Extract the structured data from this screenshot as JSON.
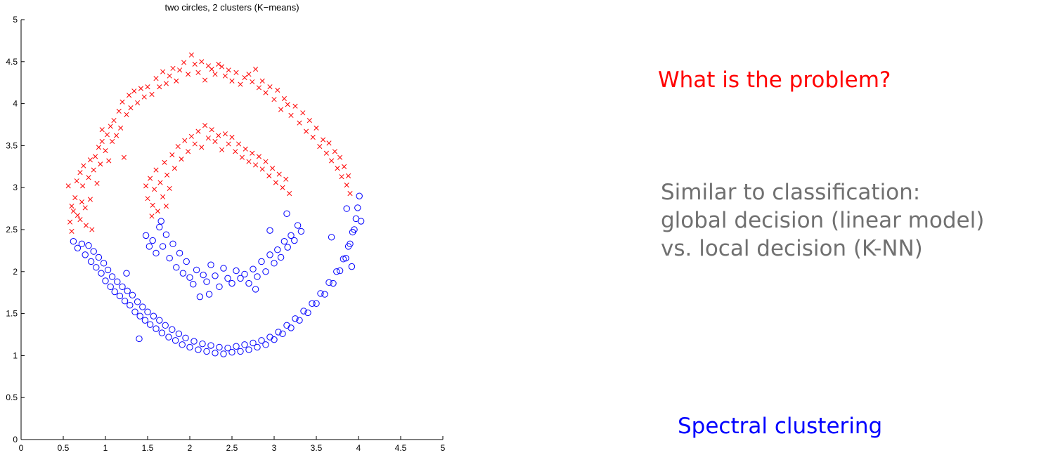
{
  "chart_data": {
    "type": "scatter",
    "title": "two circles, 2 clusters (K−means)",
    "xlabel": "",
    "ylabel": "",
    "xlim": [
      0,
      5
    ],
    "ylim": [
      0,
      5
    ],
    "xticks": [
      "0",
      "0.5",
      "1",
      "1.5",
      "2",
      "2.5",
      "3",
      "3.5",
      "4",
      "4.5",
      "5"
    ],
    "yticks": [
      "0",
      "0.5",
      "1",
      "1.5",
      "2",
      "2.5",
      "3",
      "3.5",
      "4",
      "4.5",
      "5"
    ],
    "grid": false,
    "series": [
      {
        "marker": "x",
        "color": "#ff0000",
        "points": [
          [
            0.56,
            3.02
          ],
          [
            0.58,
            2.59
          ],
          [
            0.6,
            2.78
          ],
          [
            0.6,
            2.48
          ],
          [
            0.62,
            2.72
          ],
          [
            0.64,
            2.88
          ],
          [
            0.66,
            3.08
          ],
          [
            0.67,
            2.67
          ],
          [
            0.7,
            3.18
          ],
          [
            0.7,
            2.62
          ],
          [
            0.72,
            2.83
          ],
          [
            0.73,
            3.02
          ],
          [
            0.74,
            3.26
          ],
          [
            0.76,
            2.76
          ],
          [
            0.77,
            2.55
          ],
          [
            0.8,
            3.12
          ],
          [
            0.82,
            2.86
          ],
          [
            0.82,
            3.33
          ],
          [
            0.84,
            2.5
          ],
          [
            0.86,
            3.21
          ],
          [
            0.88,
            3.37
          ],
          [
            0.9,
            3.05
          ],
          [
            0.92,
            3.48
          ],
          [
            0.94,
            3.28
          ],
          [
            0.96,
            3.55
          ],
          [
            0.96,
            3.69
          ],
          [
            1.0,
            3.44
          ],
          [
            1.02,
            3.63
          ],
          [
            1.04,
            3.32
          ],
          [
            1.06,
            3.73
          ],
          [
            1.08,
            3.55
          ],
          [
            1.1,
            3.8
          ],
          [
            1.13,
            3.62
          ],
          [
            1.16,
            3.91
          ],
          [
            1.18,
            3.71
          ],
          [
            1.2,
            4.02
          ],
          [
            1.22,
            3.36
          ],
          [
            1.25,
            3.87
          ],
          [
            1.28,
            4.1
          ],
          [
            1.3,
            3.95
          ],
          [
            1.34,
            4.15
          ],
          [
            1.38,
            4.01
          ],
          [
            1.42,
            4.18
          ],
          [
            1.46,
            4.08
          ],
          [
            1.5,
            4.2
          ],
          [
            1.55,
            4.11
          ],
          [
            1.6,
            4.3
          ],
          [
            1.64,
            4.2
          ],
          [
            1.68,
            4.38
          ],
          [
            1.72,
            4.24
          ],
          [
            1.76,
            4.33
          ],
          [
            1.8,
            4.42
          ],
          [
            1.84,
            4.27
          ],
          [
            1.88,
            4.4
          ],
          [
            1.93,
            4.49
          ],
          [
            1.98,
            4.35
          ],
          [
            2.02,
            4.58
          ],
          [
            2.06,
            4.47
          ],
          [
            2.1,
            4.37
          ],
          [
            2.14,
            4.5
          ],
          [
            2.18,
            4.28
          ],
          [
            2.22,
            4.45
          ],
          [
            2.26,
            4.41
          ],
          [
            2.3,
            4.35
          ],
          [
            2.34,
            4.47
          ],
          [
            2.38,
            4.44
          ],
          [
            2.42,
            4.33
          ],
          [
            2.46,
            4.4
          ],
          [
            2.5,
            4.27
          ],
          [
            2.55,
            4.37
          ],
          [
            2.6,
            4.23
          ],
          [
            2.65,
            4.31
          ],
          [
            2.7,
            4.35
          ],
          [
            2.74,
            4.26
          ],
          [
            2.78,
            4.41
          ],
          [
            2.82,
            4.19
          ],
          [
            2.86,
            4.27
          ],
          [
            2.9,
            4.13
          ],
          [
            2.95,
            4.2
          ],
          [
            3.0,
            4.05
          ],
          [
            3.04,
            4.16
          ],
          [
            3.08,
            3.93
          ],
          [
            3.12,
            4.06
          ],
          [
            3.16,
            3.99
          ],
          [
            3.2,
            3.86
          ],
          [
            3.25,
            3.97
          ],
          [
            3.3,
            3.77
          ],
          [
            3.34,
            3.89
          ],
          [
            3.38,
            3.67
          ],
          [
            3.42,
            3.8
          ],
          [
            3.46,
            3.6
          ],
          [
            3.5,
            3.71
          ],
          [
            3.54,
            3.49
          ],
          [
            3.58,
            3.57
          ],
          [
            3.62,
            3.41
          ],
          [
            3.65,
            3.53
          ],
          [
            3.68,
            3.32
          ],
          [
            3.72,
            3.43
          ],
          [
            3.75,
            3.23
          ],
          [
            3.78,
            3.36
          ],
          [
            3.8,
            3.13
          ],
          [
            3.83,
            3.25
          ],
          [
            3.86,
            3.03
          ],
          [
            3.88,
            3.14
          ],
          [
            3.9,
            2.93
          ],
          [
            1.48,
            3.02
          ],
          [
            1.5,
            2.87
          ],
          [
            1.53,
            3.11
          ],
          [
            1.56,
            2.79
          ],
          [
            1.58,
            2.98
          ],
          [
            1.6,
            3.21
          ],
          [
            1.62,
            2.72
          ],
          [
            1.65,
            3.06
          ],
          [
            1.68,
            2.89
          ],
          [
            1.7,
            3.3
          ],
          [
            1.73,
            3.15
          ],
          [
            1.76,
            2.99
          ],
          [
            1.79,
            3.39
          ],
          [
            1.82,
            3.23
          ],
          [
            1.86,
            3.49
          ],
          [
            1.9,
            3.34
          ],
          [
            1.94,
            3.56
          ],
          [
            1.98,
            3.43
          ],
          [
            2.02,
            3.61
          ],
          [
            2.06,
            3.52
          ],
          [
            2.1,
            3.67
          ],
          [
            2.14,
            3.48
          ],
          [
            2.18,
            3.74
          ],
          [
            2.22,
            3.59
          ],
          [
            2.26,
            3.69
          ],
          [
            2.3,
            3.55
          ],
          [
            2.34,
            3.62
          ],
          [
            2.38,
            3.45
          ],
          [
            2.42,
            3.64
          ],
          [
            2.46,
            3.52
          ],
          [
            2.5,
            3.6
          ],
          [
            2.54,
            3.43
          ],
          [
            2.58,
            3.52
          ],
          [
            2.62,
            3.36
          ],
          [
            2.66,
            3.46
          ],
          [
            2.7,
            3.31
          ],
          [
            2.74,
            3.41
          ],
          [
            2.78,
            3.27
          ],
          [
            2.82,
            3.37
          ],
          [
            2.86,
            3.22
          ],
          [
            2.9,
            3.31
          ],
          [
            2.94,
            3.14
          ],
          [
            2.98,
            3.23
          ],
          [
            3.02,
            3.06
          ],
          [
            3.06,
            3.16
          ],
          [
            3.1,
            3.0
          ],
          [
            3.14,
            3.1
          ],
          [
            3.18,
            2.93
          ],
          [
            1.55,
            2.66
          ],
          [
            1.72,
            2.78
          ]
        ]
      },
      {
        "marker": "o",
        "color": "#0000ff",
        "points": [
          [
            0.62,
            2.36
          ],
          [
            0.67,
            2.28
          ],
          [
            0.72,
            2.33
          ],
          [
            0.76,
            2.2
          ],
          [
            0.8,
            2.31
          ],
          [
            0.83,
            2.12
          ],
          [
            0.86,
            2.24
          ],
          [
            0.89,
            2.05
          ],
          [
            0.92,
            2.17
          ],
          [
            0.95,
            1.98
          ],
          [
            0.98,
            2.1
          ],
          [
            1.0,
            1.89
          ],
          [
            1.03,
            2.02
          ],
          [
            1.06,
            1.82
          ],
          [
            1.08,
            1.94
          ],
          [
            1.11,
            1.76
          ],
          [
            1.14,
            1.88
          ],
          [
            1.17,
            1.71
          ],
          [
            1.2,
            1.82
          ],
          [
            1.23,
            1.65
          ],
          [
            1.26,
            1.77
          ],
          [
            1.29,
            1.6
          ],
          [
            1.32,
            1.72
          ],
          [
            1.35,
            1.52
          ],
          [
            1.38,
            1.64
          ],
          [
            1.41,
            1.47
          ],
          [
            1.44,
            1.58
          ],
          [
            1.47,
            1.42
          ],
          [
            1.5,
            1.52
          ],
          [
            1.53,
            1.37
          ],
          [
            1.57,
            1.47
          ],
          [
            1.6,
            1.32
          ],
          [
            1.64,
            1.42
          ],
          [
            1.67,
            1.27
          ],
          [
            1.71,
            1.36
          ],
          [
            1.75,
            1.22
          ],
          [
            1.79,
            1.31
          ],
          [
            1.83,
            1.18
          ],
          [
            1.87,
            1.26
          ],
          [
            1.91,
            1.13
          ],
          [
            1.95,
            1.21
          ],
          [
            2.0,
            1.1
          ],
          [
            2.05,
            1.17
          ],
          [
            2.1,
            1.07
          ],
          [
            2.15,
            1.14
          ],
          [
            2.2,
            1.05
          ],
          [
            2.25,
            1.12
          ],
          [
            2.3,
            1.03
          ],
          [
            2.35,
            1.1
          ],
          [
            2.4,
            1.02
          ],
          [
            2.45,
            1.09
          ],
          [
            2.5,
            1.04
          ],
          [
            2.55,
            1.11
          ],
          [
            2.6,
            1.05
          ],
          [
            2.65,
            1.13
          ],
          [
            2.7,
            1.07
          ],
          [
            2.75,
            1.15
          ],
          [
            2.8,
            1.1
          ],
          [
            2.85,
            1.18
          ],
          [
            2.9,
            1.13
          ],
          [
            2.95,
            1.22
          ],
          [
            3.0,
            1.19
          ],
          [
            3.05,
            1.28
          ],
          [
            3.1,
            1.26
          ],
          [
            3.15,
            1.36
          ],
          [
            3.2,
            1.33
          ],
          [
            3.25,
            1.44
          ],
          [
            3.3,
            1.42
          ],
          [
            3.35,
            1.53
          ],
          [
            3.4,
            1.51
          ],
          [
            3.45,
            1.62
          ],
          [
            3.5,
            1.62
          ],
          [
            3.55,
            1.74
          ],
          [
            3.6,
            1.73
          ],
          [
            3.65,
            1.87
          ],
          [
            3.7,
            1.86
          ],
          [
            3.74,
            2.0
          ],
          [
            3.78,
            2.01
          ],
          [
            3.82,
            2.15
          ],
          [
            3.85,
            2.16
          ],
          [
            3.88,
            2.3
          ],
          [
            3.9,
            2.33
          ],
          [
            3.93,
            2.47
          ],
          [
            3.95,
            2.5
          ],
          [
            3.97,
            2.63
          ],
          [
            3.99,
            2.76
          ],
          [
            4.01,
            2.9
          ],
          [
            4.03,
            2.6
          ],
          [
            3.86,
            2.75
          ],
          [
            3.92,
            2.06
          ],
          [
            1.25,
            1.98
          ],
          [
            1.4,
            1.2
          ],
          [
            3.68,
            2.41
          ],
          [
            1.48,
            2.43
          ],
          [
            1.52,
            2.3
          ],
          [
            1.56,
            2.37
          ],
          [
            1.6,
            2.22
          ],
          [
            1.64,
            2.53
          ],
          [
            1.68,
            2.3
          ],
          [
            1.72,
            2.44
          ],
          [
            1.76,
            2.16
          ],
          [
            1.8,
            2.33
          ],
          [
            1.84,
            2.05
          ],
          [
            1.88,
            2.22
          ],
          [
            1.92,
            1.98
          ],
          [
            1.96,
            2.12
          ],
          [
            2.0,
            1.93
          ],
          [
            2.04,
            1.85
          ],
          [
            2.08,
            2.02
          ],
          [
            2.12,
            1.7
          ],
          [
            2.16,
            1.96
          ],
          [
            2.2,
            1.88
          ],
          [
            2.25,
            2.08
          ],
          [
            2.3,
            1.95
          ],
          [
            2.35,
            1.82
          ],
          [
            2.4,
            2.04
          ],
          [
            2.45,
            1.92
          ],
          [
            2.5,
            1.86
          ],
          [
            2.55,
            2.01
          ],
          [
            2.6,
            1.92
          ],
          [
            2.65,
            1.97
          ],
          [
            2.7,
            1.86
          ],
          [
            2.75,
            2.03
          ],
          [
            2.8,
            1.94
          ],
          [
            2.85,
            2.12
          ],
          [
            2.9,
            2.0
          ],
          [
            2.95,
            2.2
          ],
          [
            3.0,
            2.1
          ],
          [
            3.04,
            2.26
          ],
          [
            3.08,
            2.17
          ],
          [
            3.12,
            2.36
          ],
          [
            3.16,
            2.29
          ],
          [
            3.2,
            2.43
          ],
          [
            3.24,
            2.37
          ],
          [
            3.28,
            2.55
          ],
          [
            3.32,
            2.48
          ],
          [
            2.95,
            2.49
          ],
          [
            3.15,
            2.69
          ],
          [
            1.66,
            2.6
          ],
          [
            2.23,
            1.73
          ],
          [
            2.78,
            1.79
          ]
        ]
      }
    ]
  },
  "slide": {
    "question": "What is the problem?",
    "description": [
      "Similar to classification:",
      "global decision (linear model)",
      "vs. local decision (K-NN)"
    ],
    "answer": "Spectral clustering"
  }
}
